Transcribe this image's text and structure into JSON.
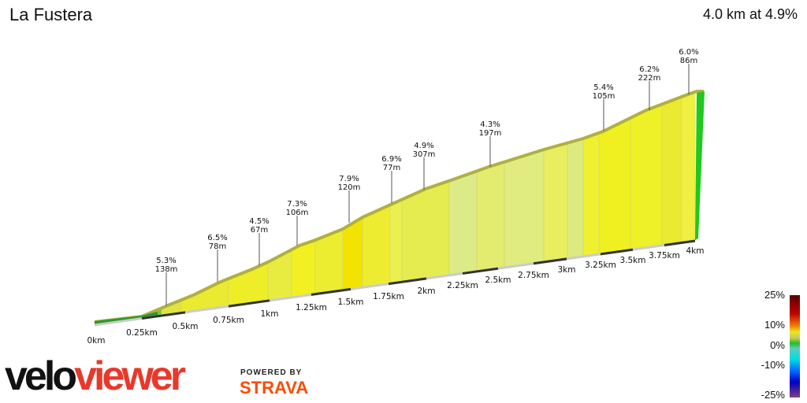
{
  "header": {
    "title": "La Fustera",
    "summary": "4.0 km at 4.9%"
  },
  "chart_data": {
    "type": "area",
    "title": "La Fustera",
    "x_unit": "km",
    "x_ticks": [
      "0km",
      "0.25km",
      "0.5km",
      "0.75km",
      "1km",
      "1.25km",
      "1.5km",
      "1.75km",
      "2km",
      "2.25km",
      "2.5km",
      "2.75km",
      "3km",
      "3.25km",
      "3.5km",
      "3.75km",
      "4km"
    ],
    "segments": [
      {
        "gradient": "5.3%",
        "length": "138m"
      },
      {
        "gradient": "6.5%",
        "length": "78m"
      },
      {
        "gradient": "4.5%",
        "length": "67m"
      },
      {
        "gradient": "7.3%",
        "length": "106m"
      },
      {
        "gradient": "7.9%",
        "length": "120m"
      },
      {
        "gradient": "6.9%",
        "length": "77m"
      },
      {
        "gradient": "4.9%",
        "length": "307m"
      },
      {
        "gradient": "4.3%",
        "length": "197m"
      },
      {
        "gradient": "5.4%",
        "length": "105m"
      },
      {
        "gradient": "6.2%",
        "length": "222m"
      },
      {
        "gradient": "6.0%",
        "length": "86m"
      }
    ],
    "legend": {
      "labels": [
        "25%",
        "10%",
        "0%",
        "-10%",
        "-25%"
      ],
      "colors": [
        "#5a0000",
        "#e00000",
        "#f0a000",
        "#e8e820",
        "#c8c860",
        "#20c020",
        "#60d0c0",
        "#00e0e0",
        "#0060ff",
        "#0000c0",
        "#804080"
      ]
    }
  },
  "branding": {
    "logo_a": "velo",
    "logo_b": "viewer",
    "powered": "POWERED BY",
    "strava": "STRAVA"
  }
}
